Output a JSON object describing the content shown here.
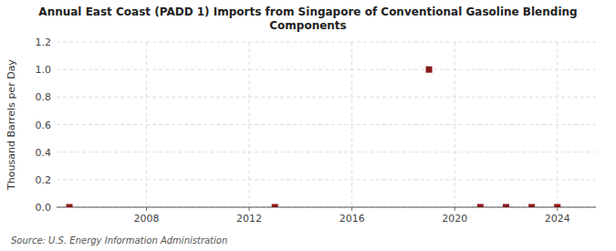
{
  "chart_data": {
    "type": "scatter",
    "title": "Annual East Coast (PADD 1) Imports from Singapore of Conventional Gasoline Blending\nComponents",
    "ylabel": "Thousand Barrels per Day",
    "annotations": [
      "Source: U.S. Energy Information Administration"
    ],
    "x": [
      2005,
      2013,
      2019,
      2021,
      2022,
      2023,
      2024
    ],
    "values": [
      0.0,
      0.0,
      1.0,
      0.0,
      0.0,
      0.0,
      0.0
    ],
    "color": "#8b1a1a",
    "marker": "square",
    "xlim": [
      2004.5,
      2025.5
    ],
    "ylim": [
      0,
      1.2
    ],
    "xticks": [
      2008,
      2012,
      2016,
      2020,
      2024
    ],
    "yticks": [
      {
        "value": 0.0,
        "label": "0.0"
      },
      0.2,
      0.4,
      0.6,
      0.8,
      {
        "value": 1.0,
        "label": "1.0"
      },
      1.2
    ],
    "grid": true
  }
}
